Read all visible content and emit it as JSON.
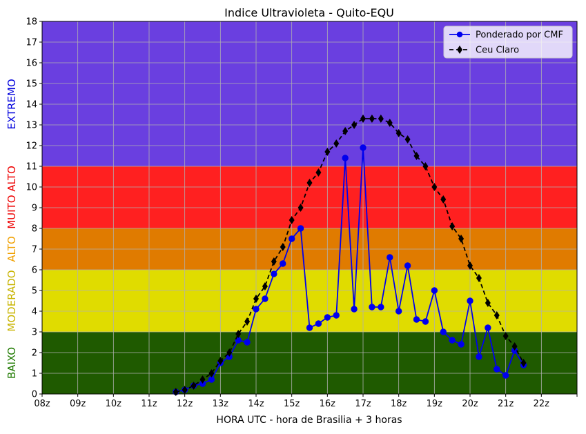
{
  "chart_data": {
    "type": "line",
    "title": "Indice Ultravioleta - Quito-EQU",
    "xlabel": "HORA UTC - hora de Brasilia + 3 horas",
    "ylabel": "",
    "xlim": [
      8,
      23
    ],
    "ylim": [
      0,
      18
    ],
    "grid": true,
    "legend_position": "top-right",
    "x_ticks": [
      8,
      9,
      10,
      11,
      12,
      13,
      14,
      15,
      16,
      17,
      18,
      19,
      20,
      21,
      22,
      23
    ],
    "x_tick_labels": [
      "08z",
      "09z",
      "10z",
      "11z",
      "12z",
      "13z",
      "14z",
      "15z",
      "16z",
      "17z",
      "18z",
      "19z",
      "20z",
      "21z",
      "22z",
      ""
    ],
    "y_ticks": [
      0,
      1,
      2,
      3,
      4,
      5,
      6,
      7,
      8,
      9,
      10,
      11,
      12,
      13,
      14,
      15,
      16,
      17,
      18
    ],
    "bands": [
      {
        "label": "BAIXO",
        "from": 0,
        "to": 3,
        "fill": "#1f5a00",
        "text_color": "#1f7a00"
      },
      {
        "label": "MODERADO",
        "from": 3,
        "to": 6,
        "fill": "#e0dc00",
        "text_color": "#c8b400"
      },
      {
        "label": "ALTO",
        "from": 6,
        "to": 8,
        "fill": "#e07b00",
        "text_color": "#f0a000"
      },
      {
        "label": "MUITO ALTO",
        "from": 8,
        "to": 11,
        "fill": "#ff2020",
        "text_color": "#ee0000"
      },
      {
        "label": "EXTREMO",
        "from": 11,
        "to": 18,
        "fill": "#6a3fe0",
        "text_color": "#0000dd"
      }
    ],
    "series": [
      {
        "name": "Ponderado por CMF",
        "color": "#0000ee",
        "marker": "circle",
        "line": "solid",
        "x": [
          11.75,
          12.0,
          12.25,
          12.5,
          12.75,
          13.0,
          13.25,
          13.5,
          13.75,
          14.0,
          14.25,
          14.5,
          14.75,
          15.0,
          15.25,
          15.5,
          15.75,
          16.0,
          16.25,
          16.5,
          16.75,
          17.0,
          17.25,
          17.5,
          17.75,
          18.0,
          18.25,
          18.5,
          18.75,
          19.0,
          19.25,
          19.5,
          19.75,
          20.0,
          20.25,
          20.5,
          20.75,
          21.0,
          21.25,
          21.5
        ],
        "values": [
          0.1,
          0.2,
          0.4,
          0.5,
          0.7,
          1.5,
          1.8,
          2.6,
          2.5,
          4.1,
          4.6,
          5.8,
          6.3,
          7.5,
          8.0,
          3.2,
          3.4,
          3.7,
          3.8,
          11.4,
          4.1,
          11.9,
          4.2,
          4.2,
          6.6,
          4.0,
          6.2,
          3.6,
          3.5,
          5.0,
          3.0,
          2.6,
          2.4,
          4.5,
          1.8,
          3.2,
          1.2,
          0.9,
          2.1,
          1.4
        ]
      },
      {
        "name": "Ceu Claro",
        "color": "#000000",
        "marker": "diamond",
        "line": "dashed",
        "x": [
          11.75,
          12.0,
          12.25,
          12.5,
          12.75,
          13.0,
          13.25,
          13.5,
          13.75,
          14.0,
          14.25,
          14.5,
          14.75,
          15.0,
          15.25,
          15.5,
          15.75,
          16.0,
          16.25,
          16.5,
          16.75,
          17.0,
          17.25,
          17.5,
          17.75,
          18.0,
          18.25,
          18.5,
          18.75,
          19.0,
          19.25,
          19.5,
          19.75,
          20.0,
          20.25,
          20.5,
          20.75,
          21.0,
          21.25,
          21.5
        ],
        "values": [
          0.1,
          0.2,
          0.4,
          0.7,
          1.0,
          1.6,
          2.0,
          2.9,
          3.5,
          4.6,
          5.2,
          6.4,
          7.1,
          8.4,
          9.0,
          10.2,
          10.7,
          11.7,
          12.1,
          12.7,
          13.0,
          13.3,
          13.3,
          13.3,
          13.1,
          12.6,
          12.3,
          11.5,
          11.0,
          10.0,
          9.4,
          8.1,
          7.5,
          6.2,
          5.6,
          4.4,
          3.8,
          2.8,
          2.3,
          1.5
        ]
      }
    ]
  }
}
